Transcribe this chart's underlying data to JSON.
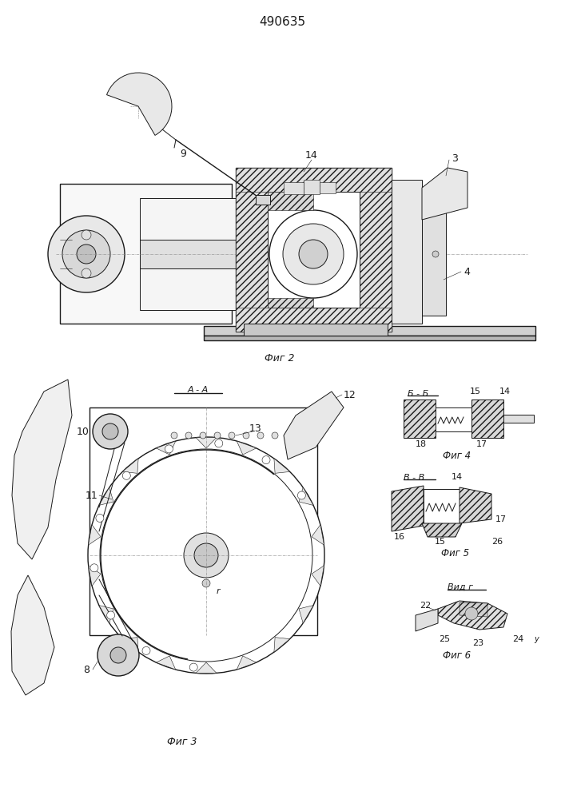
{
  "title": "490635",
  "background_color": "#ffffff",
  "fig_width": 7.07,
  "fig_height": 10.0,
  "dpi": 100,
  "fig2_label": "Фиг 2",
  "fig3_label": "Фиг 3",
  "fig4_label": "Фиг 4",
  "fig5_label": "Фиг 5",
  "fig6_label": "Фиг 6",
  "view1_label": "Вид г",
  "aa_label": "А - А",
  "bb_label": "Б - Б",
  "vv_label": "В - В"
}
